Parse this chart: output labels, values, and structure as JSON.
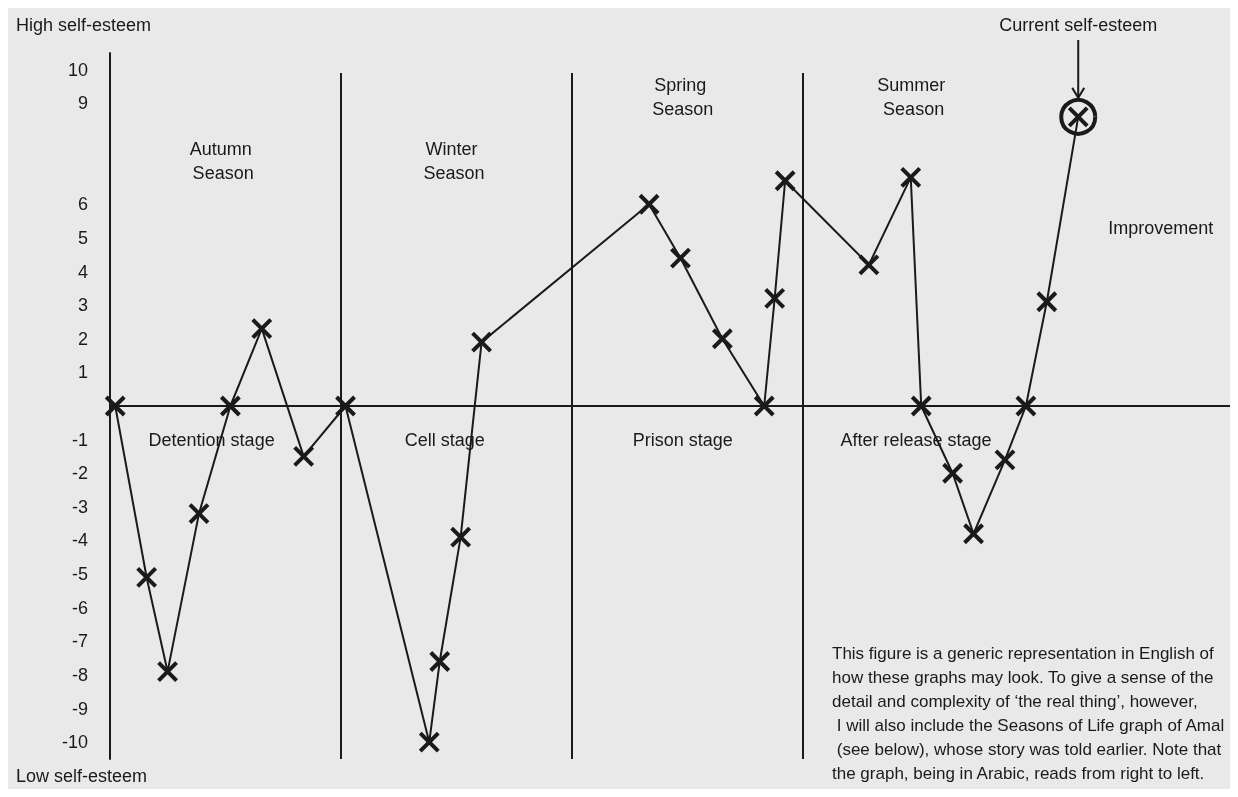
{
  "chart_data": {
    "type": "line",
    "categories": [
      null,
      null,
      null,
      null,
      null,
      null,
      null,
      null,
      null,
      null,
      null,
      null,
      null,
      null,
      null,
      null,
      null,
      null,
      null,
      null,
      null,
      null,
      null,
      null,
      null,
      null,
      null,
      null,
      null,
      null,
      null,
      null,
      null,
      null,
      null,
      null,
      null,
      null,
      null,
      null,
      null,
      null,
      null,
      null,
      null,
      null,
      null,
      null,
      null,
      null,
      null,
      null,
      null,
      null,
      null,
      null,
      null,
      null,
      null,
      null,
      null,
      null,
      null,
      null,
      null,
      null,
      null,
      null,
      null,
      null,
      null,
      null,
      null,
      null,
      null,
      null,
      null,
      null,
      null,
      null,
      null,
      null,
      null,
      null,
      null,
      null,
      null,
      null,
      null,
      null,
      null,
      null,
      null,
      null,
      null,
      null,
      null,
      null,
      null,
      null,
      null,
      null,
      null,
      null,
      null,
      null,
      null
    ],
    "ylim": [
      -10.5,
      10.5
    ],
    "yticks": [
      10,
      9,
      6,
      5,
      4,
      3,
      2,
      1,
      -1,
      -2,
      -3,
      -4,
      -5,
      -6,
      -7,
      -8,
      -9,
      -10
    ],
    "tick_labels": "y",
    "grid": false,
    "series": [
      {
        "type": "line",
        "color": "#1a1a1a",
        "marker": "cross",
        "values": [
          0,
          null,
          null,
          -5.1,
          null,
          -7.9,
          null,
          null,
          -3.2,
          null,
          null,
          0,
          null,
          null,
          2.3,
          null,
          null,
          null,
          -1.5,
          null,
          null,
          null,
          0,
          null,
          null,
          null,
          null,
          null,
          null,
          null,
          -10,
          -7.6,
          null,
          -3.9,
          null,
          1.9,
          null,
          null,
          null,
          null,
          null,
          null,
          null,
          null,
          null,
          null,
          null,
          null,
          null,
          null,
          null,
          6.0,
          null,
          null,
          4.4,
          null,
          null,
          null,
          2.0,
          null,
          null,
          null,
          0,
          3.2,
          6.7,
          null,
          null,
          null,
          null,
          null,
          null,
          null,
          4.2,
          null,
          null,
          null,
          6.8,
          0,
          null,
          null,
          -2.0,
          null,
          -3.8,
          null,
          null,
          -1.6,
          null,
          0,
          null,
          3.1,
          null,
          null,
          8.6,
          null,
          null,
          null,
          null,
          null,
          null,
          null,
          null,
          null,
          null,
          null,
          null,
          null,
          null
        ]
      },
      {
        "type": "scatter",
        "color": "#1a1a1a",
        "marker": "circle",
        "values": [
          null,
          null,
          null,
          null,
          null,
          null,
          null,
          null,
          null,
          null,
          null,
          null,
          null,
          null,
          null,
          null,
          null,
          null,
          null,
          null,
          null,
          null,
          null,
          null,
          null,
          null,
          null,
          null,
          null,
          null,
          null,
          null,
          null,
          null,
          null,
          null,
          null,
          null,
          null,
          null,
          null,
          null,
          null,
          null,
          null,
          null,
          null,
          null,
          null,
          null,
          null,
          null,
          null,
          null,
          null,
          null,
          null,
          null,
          null,
          null,
          null,
          null,
          null,
          null,
          null,
          null,
          null,
          null,
          null,
          null,
          null,
          null,
          null,
          null,
          null,
          null,
          null,
          null,
          null,
          null,
          null,
          null,
          null,
          null,
          null,
          null,
          null,
          null,
          null,
          null,
          null,
          null,
          8.6,
          null,
          null,
          null,
          null,
          null,
          null,
          null,
          null,
          null,
          null,
          null,
          null,
          null,
          null
        ]
      }
    ],
    "annotations": [
      "High self-esteem",
      "Low self-esteem",
      "This figure is a generic representation in English of how these graphs may look. To give a sense of the detail and complexity of ‘the real thing’, however, I will also include the Seasons of Life graph of Amal (see below), whose story was told earlier. Note that the graph, being in Arabic, reads from right to left.",
      "Current self-esteem",
      "Autumn Season",
      "Winter Season",
      "Spring Season",
      "Summer Season",
      "Detention stage",
      "Cell stage",
      "Prison stage",
      "After release stage",
      "Improvement"
    ]
  }
}
